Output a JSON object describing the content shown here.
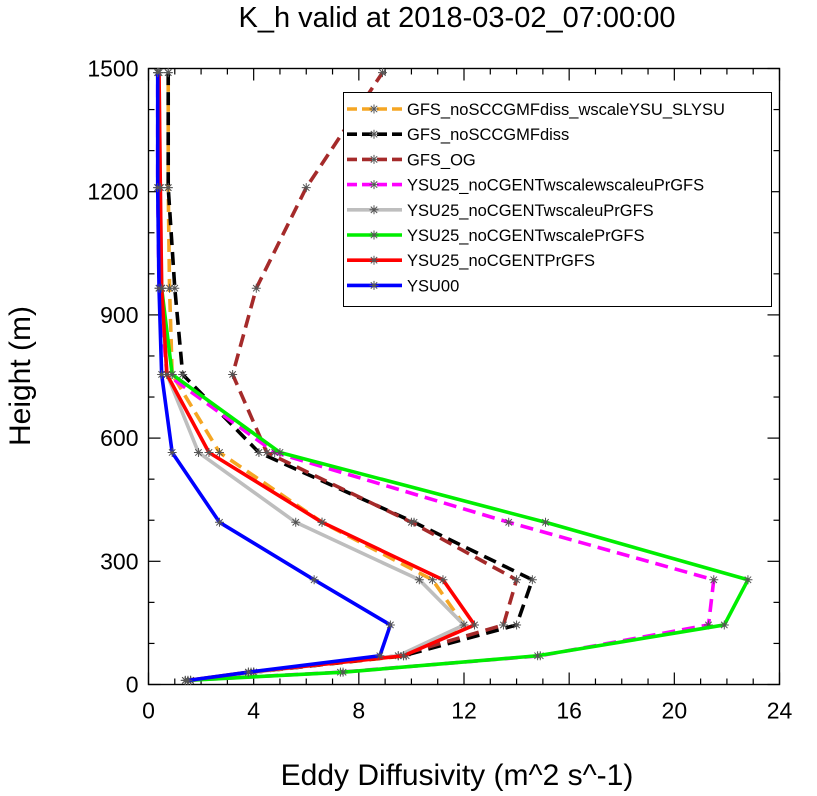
{
  "chart_data": {
    "type": "line",
    "title": "K_h valid at 2018-03-02_07:00:00",
    "xlabel": "Eddy Diffusivity (m^2 s^-1)",
    "ylabel": "Height (m)",
    "xlim": [
      0,
      24
    ],
    "ylim": [
      0,
      1500
    ],
    "xticks": [
      "0",
      "4",
      "8",
      "12",
      "16",
      "20",
      "24"
    ],
    "yticks": [
      "0",
      "300",
      "600",
      "900",
      "1200",
      "1500"
    ],
    "legend_position": "top-right",
    "heights": [
      10,
      30,
      70,
      145,
      255,
      395,
      565,
      755,
      965,
      1210,
      1490
    ],
    "series": [
      {
        "name": "GFS_noSCCGMFdiss_wscaleYSU_SLYSU",
        "color": "#f5a623",
        "dash": "dashed",
        "values": [
          1.6,
          4.0,
          9.8,
          12.0,
          10.8,
          6.6,
          2.7,
          0.9,
          0.8,
          0.75,
          0.75
        ]
      },
      {
        "name": "GFS_noSCCGMFdiss",
        "color": "#000000",
        "dash": "dashed",
        "values": [
          1.6,
          4.0,
          9.7,
          14.0,
          14.6,
          10.1,
          4.2,
          1.3,
          1.0,
          0.75,
          0.75
        ]
      },
      {
        "name": "GFS_OG",
        "color": "#a52a2a",
        "dash": "dashed",
        "values": [
          1.6,
          3.9,
          9.5,
          13.5,
          14.0,
          10.0,
          4.5,
          3.2,
          4.1,
          6.0,
          8.9
        ]
      },
      {
        "name": "YSU25_noCGENTwscalewscaleuPrGFS",
        "color": "#ff00ff",
        "dash": "dashed",
        "values": [
          1.4,
          7.3,
          14.9,
          21.3,
          21.5,
          13.7,
          4.8,
          0.7,
          0.4,
          0.35,
          0.35
        ]
      },
      {
        "name": "YSU25_noCGENTwscaleuPrGFS",
        "color": "#bebebe",
        "dash": "solid",
        "values": [
          1.6,
          4.0,
          9.5,
          12.0,
          10.3,
          5.6,
          1.9,
          0.7,
          0.5,
          0.45,
          0.4
        ]
      },
      {
        "name": "YSU25_noCGENTwscalePrGFS",
        "color": "#00ee00",
        "dash": "solid",
        "values": [
          1.4,
          7.4,
          14.8,
          21.9,
          22.8,
          15.1,
          5.0,
          0.9,
          0.5,
          0.4,
          0.35
        ]
      },
      {
        "name": "YSU25_noCGENTPrGFS",
        "color": "#ff0000",
        "dash": "solid",
        "values": [
          1.5,
          3.8,
          9.7,
          12.4,
          11.2,
          6.6,
          2.3,
          0.7,
          0.5,
          0.45,
          0.4
        ]
      },
      {
        "name": "YSU00",
        "color": "#0000ff",
        "dash": "solid",
        "values": [
          1.5,
          3.8,
          8.8,
          9.2,
          6.3,
          2.7,
          0.9,
          0.5,
          0.4,
          0.35,
          0.35
        ]
      }
    ]
  }
}
